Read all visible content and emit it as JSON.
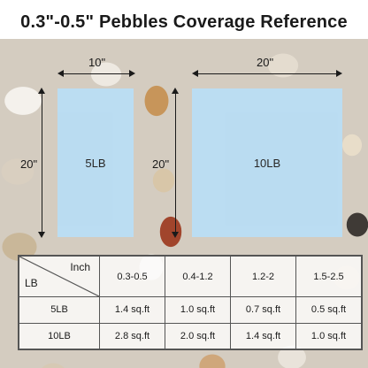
{
  "title": "0.3\"-0.5\" Pebbles Coverage Reference",
  "left_box": {
    "width_label": "10\"",
    "height_label": "20\"",
    "label": "5LB"
  },
  "right_box": {
    "width_label": "20\"",
    "height_label": "20\"",
    "label": "10LB"
  },
  "table": {
    "corner_top": "Inch",
    "corner_bottom": "LB",
    "columns": [
      "0.3-0.5",
      "0.4-1.2",
      "1.2-2",
      "1.5-2.5"
    ],
    "rows": [
      {
        "label": "5LB",
        "values": [
          "1.4 sq.ft",
          "1.0 sq.ft",
          "0.7 sq.ft",
          "0.5 sq.ft"
        ]
      },
      {
        "label": "10LB",
        "values": [
          "2.8 sq.ft",
          "2.0 sq.ft",
          "1.4 sq.ft",
          "1.0 sq.ft"
        ]
      }
    ]
  }
}
